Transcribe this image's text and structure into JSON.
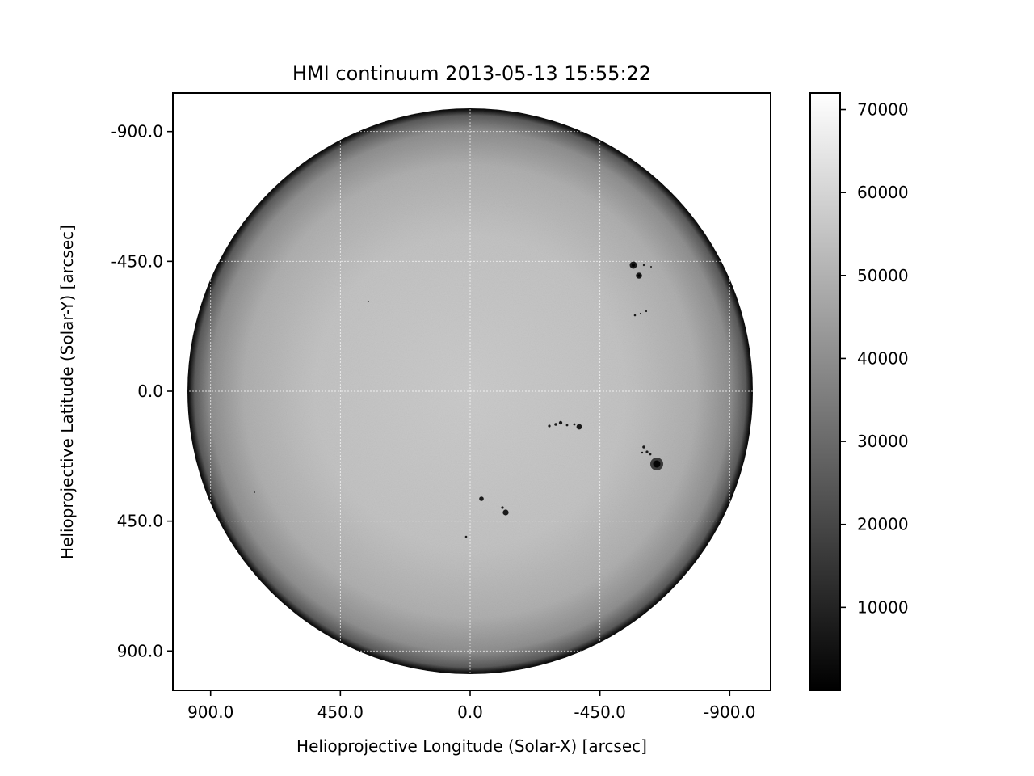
{
  "title": "HMI continuum 2013-05-13 15:55:22",
  "xlabel": "Helioprojective Longitude (Solar-X) [arcsec]",
  "ylabel": "Helioprojective Latitude (Solar-Y) [arcsec]",
  "x_ticks": [
    {
      "value": 900,
      "label": "900.0"
    },
    {
      "value": 450,
      "label": "450.0"
    },
    {
      "value": 0,
      "label": "0.0"
    },
    {
      "value": -450,
      "label": "-450.0"
    },
    {
      "value": -900,
      "label": "-900.0"
    }
  ],
  "y_ticks": [
    {
      "value": -900,
      "label": "-900.0"
    },
    {
      "value": -450,
      "label": "-450.0"
    },
    {
      "value": 0,
      "label": "0.0"
    },
    {
      "value": 450,
      "label": "450.0"
    },
    {
      "value": 900,
      "label": "900.0"
    }
  ],
  "colorbar": {
    "range": [
      0,
      72000
    ],
    "ticks": [
      {
        "value": 10000,
        "label": "10000"
      },
      {
        "value": 20000,
        "label": "20000"
      },
      {
        "value": 30000,
        "label": "30000"
      },
      {
        "value": 40000,
        "label": "40000"
      },
      {
        "value": 50000,
        "label": "50000"
      },
      {
        "value": 60000,
        "label": "60000"
      },
      {
        "value": 70000,
        "label": "70000"
      }
    ],
    "colormap": "gray"
  },
  "image": {
    "content": "full-disk solar continuum image with limb darkening and sunspots",
    "x_axis_reversed": true,
    "y_axis_inverted": true,
    "grid": true
  }
}
